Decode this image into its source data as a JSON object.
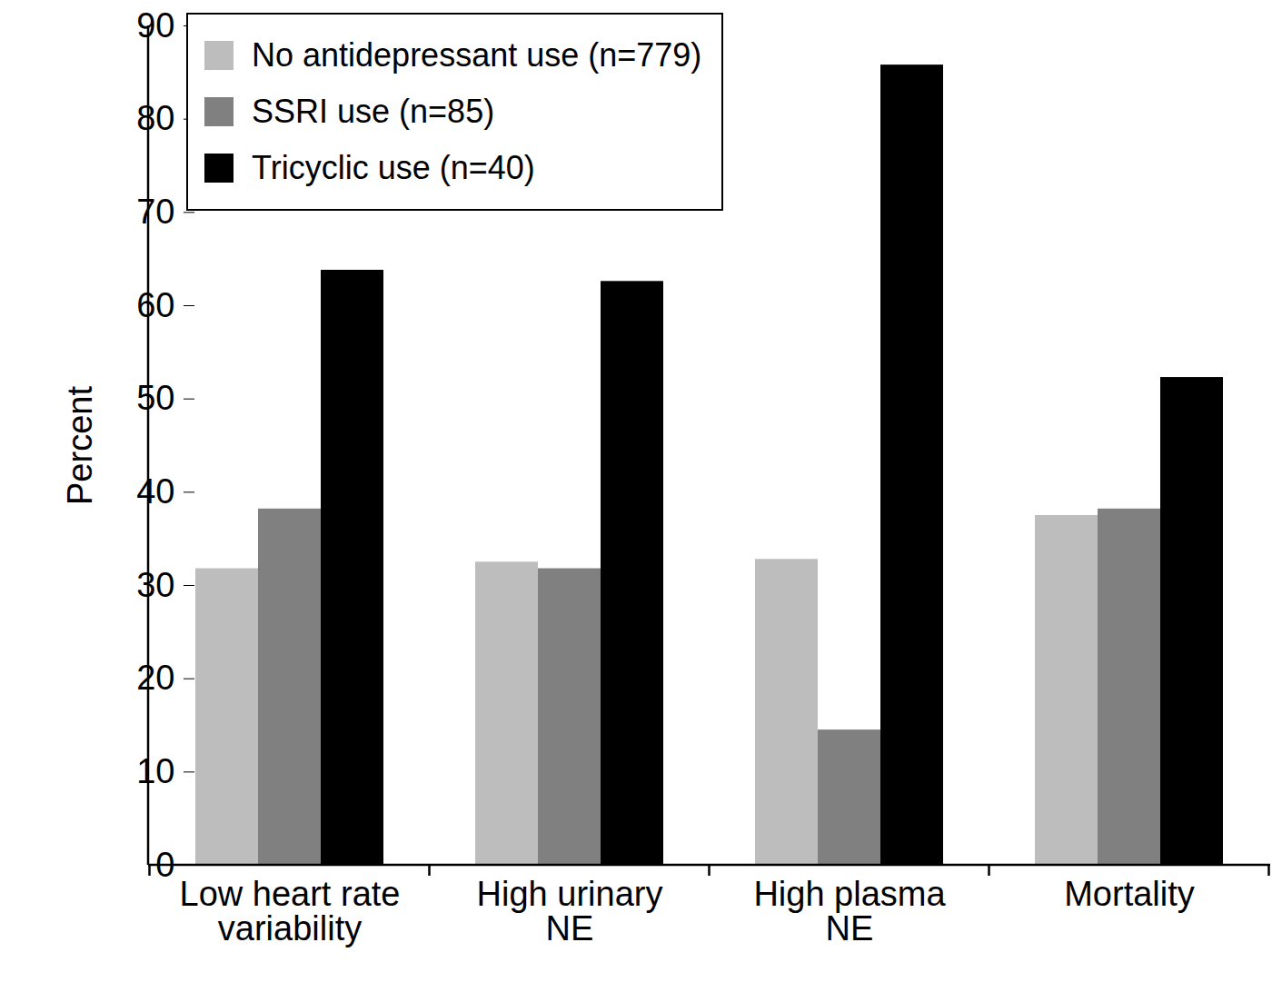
{
  "chart_data": {
    "type": "bar",
    "y_label": "Percent",
    "categories": [
      "Low heart rate\nvariability",
      "High urinary\nNE",
      "High plasma\nNE",
      "Mortality"
    ],
    "series": [
      {
        "name": "No antidepressant use (n=779)",
        "color": "#bdbdbd",
        "values": [
          31.8,
          32.5,
          32.8,
          37.5
        ]
      },
      {
        "name": "SSRI use (n=85)",
        "color": "#808080",
        "values": [
          38.2,
          31.8,
          14.5,
          38.2
        ]
      },
      {
        "name": "Tricyclic use (n=40)",
        "color": "#000000",
        "values": [
          63.8,
          62.6,
          85.8,
          52.3
        ]
      }
    ],
    "ylim": [
      0,
      90
    ],
    "yticks": [
      0,
      10,
      20,
      30,
      40,
      50,
      60,
      70,
      80,
      90
    ],
    "grid": false,
    "legend": "top-left"
  }
}
